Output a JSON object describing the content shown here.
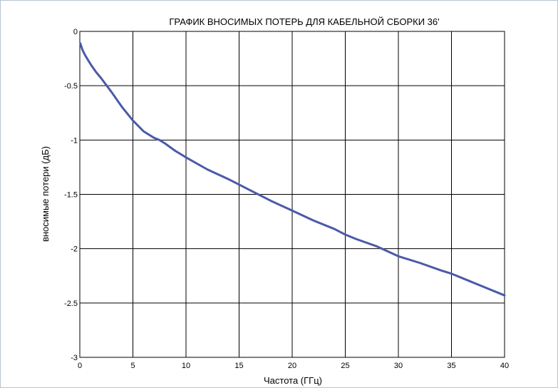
{
  "colors": {
    "series": "#4a5aa8",
    "grid": "#000000",
    "frame_border": "#b8c4d4"
  },
  "chart_data": {
    "type": "line",
    "title": "ГРАФИК ВНОСИМЫХ ПОТЕРЬ ДЛЯ КАБЕЛЬНОЙ СБОРКИ 36'",
    "xlabel": "Частота (ГГц)",
    "ylabel": "вносимые потери (дБ)",
    "xlim": [
      0,
      40
    ],
    "ylim": [
      -3,
      0
    ],
    "xticks": [
      0,
      5,
      10,
      15,
      20,
      25,
      30,
      35,
      40
    ],
    "yticks": [
      0,
      -0.5,
      -1,
      -1.5,
      -2,
      -2.5,
      -3
    ],
    "xtick_labels": [
      "0",
      "5",
      "10",
      "15",
      "20",
      "25",
      "30",
      "35",
      "40"
    ],
    "ytick_labels": [
      "0",
      "-0.5",
      "-1",
      "-1.5",
      "-2",
      "-2.5",
      "-3"
    ],
    "grid": true,
    "legend": false,
    "series": [
      {
        "x": [
          0.05,
          0.25,
          0.5,
          1,
          1.5,
          2,
          3,
          4,
          5,
          6,
          7,
          7.5,
          8,
          9,
          10,
          12,
          14,
          15,
          16,
          18,
          20,
          22,
          24,
          25,
          26,
          28,
          30,
          32,
          34,
          35,
          36,
          38,
          40
        ],
        "values": [
          -0.11,
          -0.17,
          -0.22,
          -0.3,
          -0.37,
          -0.43,
          -0.56,
          -0.7,
          -0.82,
          -0.92,
          -0.98,
          -1.0,
          -1.03,
          -1.1,
          -1.16,
          -1.27,
          -1.36,
          -1.41,
          -1.46,
          -1.56,
          -1.65,
          -1.74,
          -1.82,
          -1.87,
          -1.91,
          -1.98,
          -2.07,
          -2.13,
          -2.2,
          -2.23,
          -2.27,
          -2.35,
          -2.43
        ]
      }
    ]
  }
}
